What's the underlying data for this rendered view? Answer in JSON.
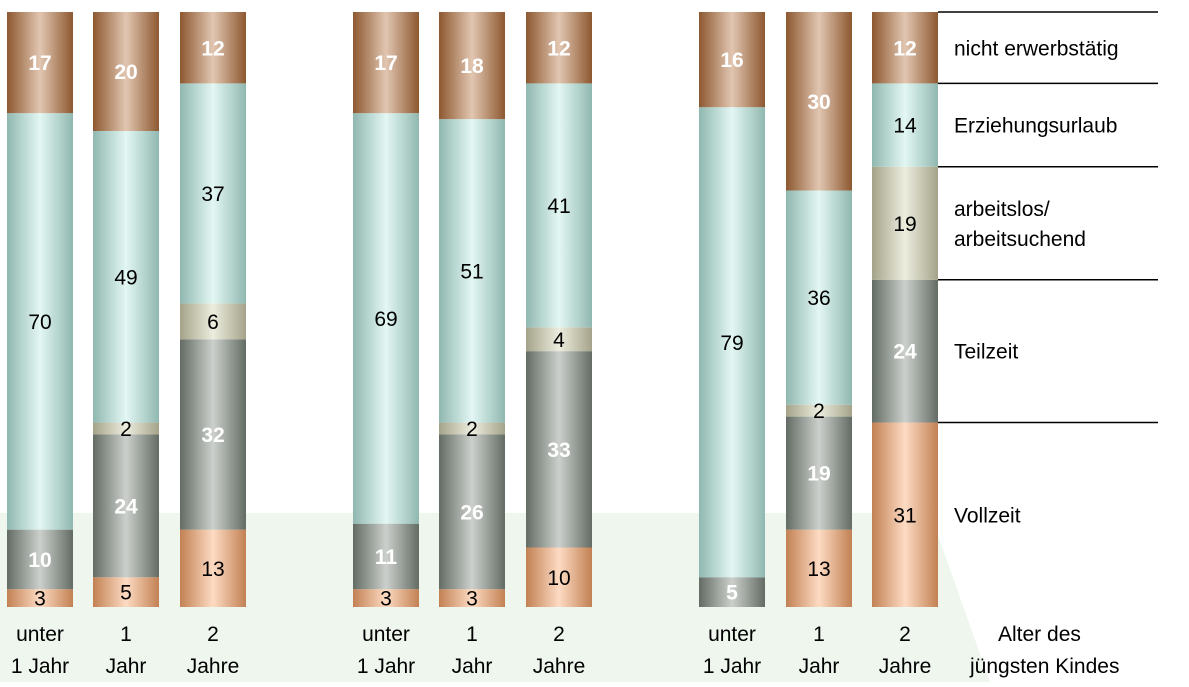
{
  "chart_data": {
    "type": "bar",
    "stacked": true,
    "normalized_percent": true,
    "group_count": 3,
    "categories": [
      "unter 1 Jahr",
      "1 Jahr",
      "2 Jahre",
      "unter 1 Jahr",
      "1 Jahr",
      "2 Jahre",
      "unter 1 Jahr",
      "1 Jahr",
      "2 Jahre"
    ],
    "category_label_lines": [
      [
        "unter",
        "1 Jahr"
      ],
      [
        "1",
        "Jahr"
      ],
      [
        "2",
        "Jahre"
      ],
      [
        "unter",
        "1 Jahr"
      ],
      [
        "1",
        "Jahr"
      ],
      [
        "2",
        "Jahre"
      ],
      [
        "unter",
        "1 Jahr"
      ],
      [
        "1",
        "Jahr"
      ],
      [
        "2",
        "Jahre"
      ]
    ],
    "axis_caption_lines": [
      "Alter des",
      "jüngsten Kindes"
    ],
    "series": [
      {
        "name": "Vollzeit",
        "label_lines": [
          "Vollzeit"
        ],
        "color": "#f9a66a",
        "values": [
          3,
          5,
          13,
          3,
          3,
          10,
          0,
          13,
          31
        ]
      },
      {
        "name": "Teilzeit",
        "label_lines": [
          "Teilzeit"
        ],
        "color": "#7f8a80",
        "values": [
          10,
          24,
          32,
          11,
          26,
          33,
          5,
          19,
          24
        ]
      },
      {
        "name": "arbeitslos/ arbeitsuchend",
        "label_lines": [
          "arbeitslos/",
          "arbeitsuchend"
        ],
        "color": "#d2d1b0",
        "values": [
          0,
          2,
          6,
          0,
          2,
          4,
          0,
          2,
          19
        ]
      },
      {
        "name": "Erziehungsurlaub",
        "label_lines": [
          "Erziehungsurlaub"
        ],
        "color": "#b8ece2",
        "values": [
          70,
          49,
          37,
          69,
          51,
          41,
          79,
          36,
          14
        ]
      },
      {
        "name": "nicht erwerbstätig",
        "label_lines": [
          "nicht erwerbstätig"
        ],
        "color": "#b5713d",
        "values": [
          17,
          20,
          12,
          17,
          18,
          12,
          16,
          30,
          12
        ]
      }
    ],
    "segment_value_colors": [
      "#000000",
      "#ffffff",
      "#000000",
      "#000000",
      "#ffffff"
    ],
    "background_color": "#eef6ee",
    "grid": false,
    "legend_position": "right"
  }
}
